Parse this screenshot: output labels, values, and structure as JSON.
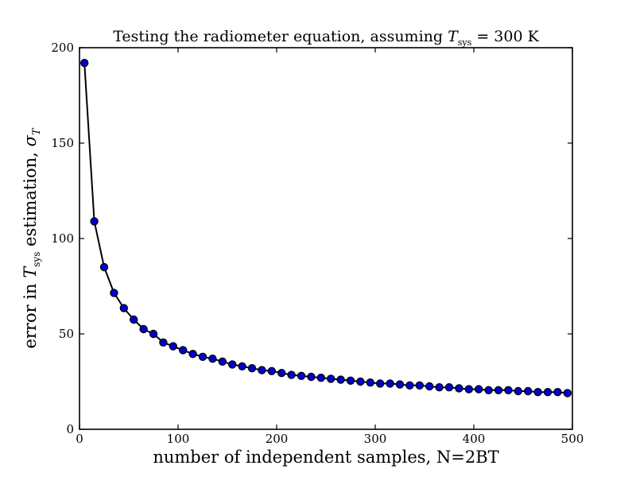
{
  "chart_data": {
    "type": "line",
    "title_text": "Testing the radiometer equation, assuming ",
    "title_var": "T",
    "title_sub": "sys",
    "title_value": " = 300 K",
    "xlabel": "number of independent samples, N=2BT",
    "ylabel_prefix": "error in ",
    "ylabel_var": "T",
    "ylabel_sub": "sys",
    "ylabel_mid": " estimation, ",
    "ylabel_sigma": "σ",
    "ylabel_sigma_sub": "T",
    "xlim": [
      0,
      500
    ],
    "ylim": [
      0,
      200
    ],
    "xticks": [
      "0",
      "100",
      "200",
      "300",
      "400",
      "500"
    ],
    "yticks": [
      "0",
      "50",
      "100",
      "150",
      "200"
    ],
    "grid": false,
    "colors": {
      "marker_fill": "#0000cc",
      "marker_edge": "#000000",
      "line": "#000000"
    },
    "series": [
      {
        "x": [
          5,
          15,
          25,
          35,
          45,
          55,
          65,
          75,
          85,
          95,
          105,
          115,
          125,
          135,
          145,
          155,
          165,
          175,
          185,
          195,
          205,
          215,
          225,
          235,
          245,
          255,
          265,
          275,
          285,
          295,
          305,
          315,
          325,
          335,
          345,
          355,
          365,
          375,
          385,
          395,
          405,
          415,
          425,
          435,
          445,
          455,
          465,
          475,
          485,
          495
        ],
        "y": [
          192,
          109,
          85,
          71.5,
          63.5,
          57.5,
          52.5,
          50,
          45.5,
          43.5,
          41.5,
          39.5,
          38,
          37,
          35.5,
          34,
          33,
          32,
          31,
          30.5,
          29.5,
          28.5,
          28,
          27.5,
          27,
          26.5,
          26,
          25.5,
          25,
          24.5,
          24,
          24,
          23.5,
          23,
          23,
          22.5,
          22,
          22,
          21.5,
          21,
          21,
          20.5,
          20.5,
          20.5,
          20,
          20,
          19.5,
          19.5,
          19.5,
          19
        ]
      }
    ]
  }
}
